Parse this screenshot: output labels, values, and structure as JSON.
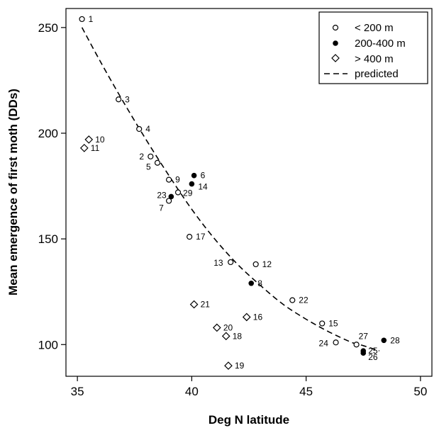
{
  "chart_data": {
    "type": "scatter",
    "title": "",
    "xlabel": "Deg N latitude",
    "ylabel": "Mean emergence of first moth (DDs)",
    "xlim": [
      34.5,
      50.5
    ],
    "ylim": [
      85,
      259
    ],
    "xticks": [
      35,
      40,
      45,
      50
    ],
    "yticks": [
      100,
      150,
      200,
      250
    ],
    "grid": false,
    "legend_position": "top-right",
    "legend": [
      {
        "key": "lt200",
        "label": "< 200 m",
        "marker": "open-circle"
      },
      {
        "key": "mid",
        "label": "200-400 m",
        "marker": "filled-circle"
      },
      {
        "key": "gt400",
        "label": "> 400 m",
        "marker": "open-diamond"
      },
      {
        "key": "predicted",
        "label": "predicted",
        "marker": "dashed-line"
      }
    ],
    "series": [
      {
        "name": "< 200 m",
        "marker": "open-circle",
        "points": [
          {
            "id": "1",
            "x": 35.2,
            "y": 254
          },
          {
            "id": "3",
            "x": 36.8,
            "y": 216
          },
          {
            "id": "4",
            "x": 37.7,
            "y": 202
          },
          {
            "id": "2",
            "x": 38.2,
            "y": 189
          },
          {
            "id": "5",
            "x": 38.5,
            "y": 186
          },
          {
            "id": "9",
            "x": 39.0,
            "y": 178
          },
          {
            "id": "29",
            "x": 39.4,
            "y": 172
          },
          {
            "id": "7",
            "x": 39.0,
            "y": 168
          },
          {
            "id": "17",
            "x": 39.9,
            "y": 151
          },
          {
            "id": "13",
            "x": 41.7,
            "y": 139
          },
          {
            "id": "12",
            "x": 42.8,
            "y": 138
          },
          {
            "id": "22",
            "x": 44.4,
            "y": 121
          },
          {
            "id": "15",
            "x": 45.7,
            "y": 110
          },
          {
            "id": "24",
            "x": 46.3,
            "y": 101
          },
          {
            "id": "27",
            "x": 47.2,
            "y": 100
          }
        ]
      },
      {
        "name": "200-400 m",
        "marker": "filled-circle",
        "points": [
          {
            "id": "6",
            "x": 40.1,
            "y": 180
          },
          {
            "id": "14",
            "x": 40.0,
            "y": 176
          },
          {
            "id": "23",
            "x": 39.1,
            "y": 170
          },
          {
            "id": "8",
            "x": 42.6,
            "y": 129
          },
          {
            "id": "25",
            "x": 47.5,
            "y": 97
          },
          {
            "id": "26",
            "x": 47.5,
            "y": 96
          },
          {
            "id": "28",
            "x": 48.4,
            "y": 102
          }
        ]
      },
      {
        "name": "> 400 m",
        "marker": "open-diamond",
        "points": [
          {
            "id": "10",
            "x": 35.5,
            "y": 197
          },
          {
            "id": "11",
            "x": 35.3,
            "y": 193
          },
          {
            "id": "21",
            "x": 40.1,
            "y": 119
          },
          {
            "id": "16",
            "x": 42.4,
            "y": 113
          },
          {
            "id": "20",
            "x": 41.1,
            "y": 108
          },
          {
            "id": "18",
            "x": 41.5,
            "y": 104
          },
          {
            "id": "19",
            "x": 41.6,
            "y": 90
          }
        ]
      }
    ],
    "predicted_curve": {
      "name": "predicted",
      "x": [
        35.2,
        36,
        37,
        38,
        39,
        40,
        41,
        42,
        43,
        44,
        45,
        46,
        47,
        47.5,
        48.2
      ],
      "y": [
        250,
        234,
        215,
        197,
        180,
        164,
        150,
        138,
        128,
        119,
        112,
        106,
        101,
        99.5,
        97
      ]
    }
  }
}
